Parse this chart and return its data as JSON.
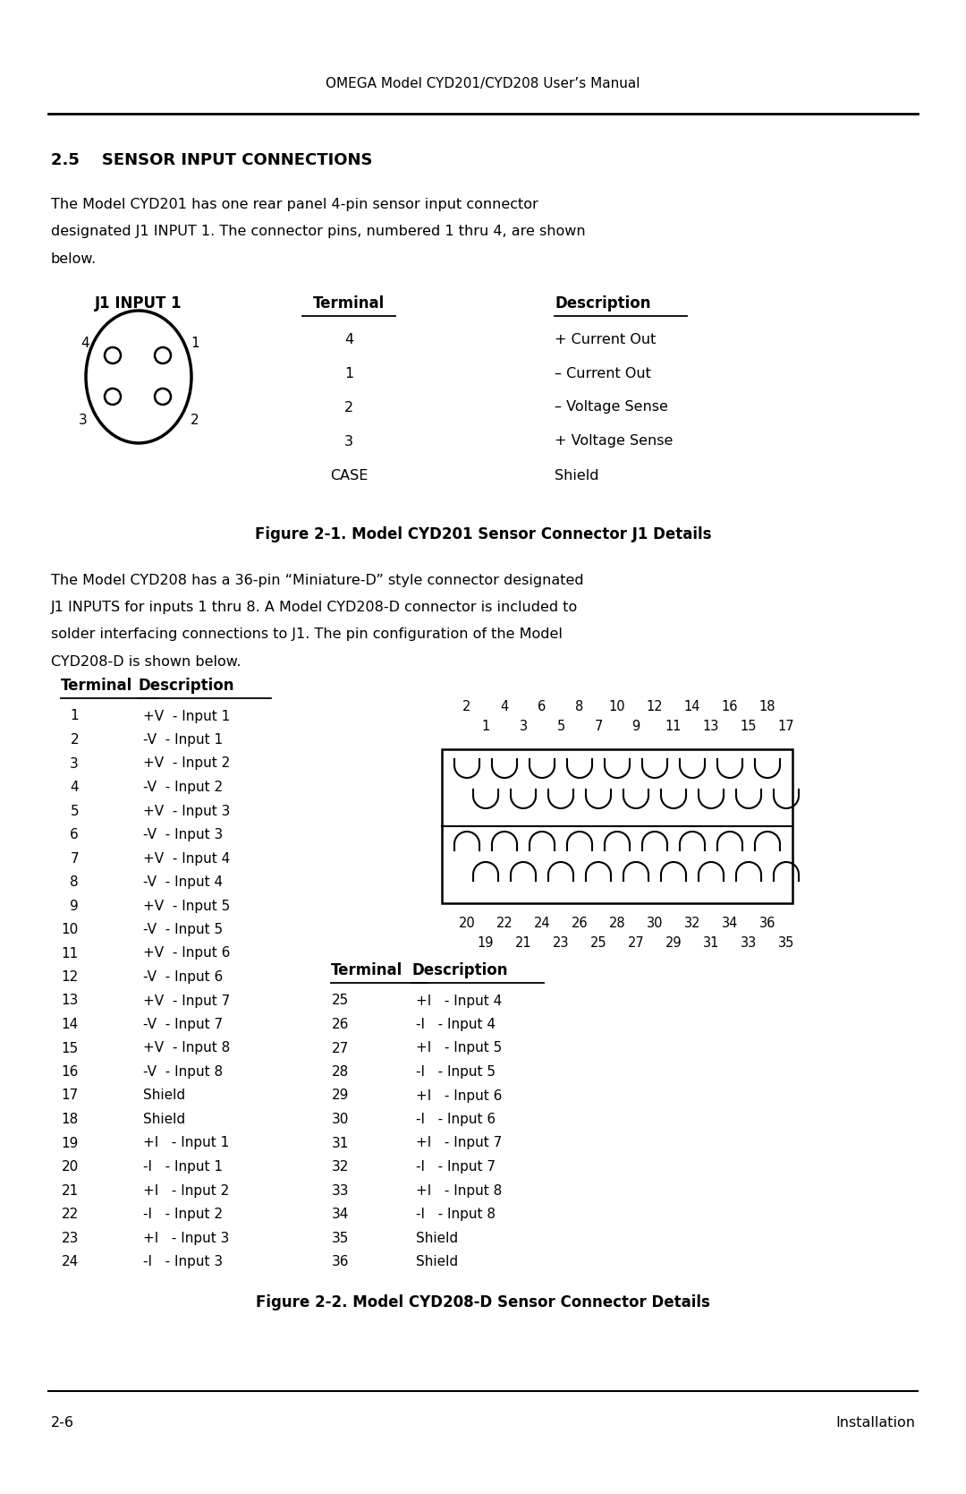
{
  "header_text": "OMEGA Model CYD201/CYD208 User’s Manual",
  "section_heading": "2.5    SENSOR INPUT CONNECTIONS",
  "body_text1_lines": [
    "The Model CYD201 has one rear panel 4-pin sensor input connector",
    "designated J1 INPUT 1. The connector pins, numbered 1 thru 4, are shown",
    "below."
  ],
  "j1_label": "J1 INPUT 1",
  "terminal_header": "Terminal",
  "description_header": "Description",
  "j1_terminals": [
    "4",
    "1",
    "2",
    "3",
    "CASE"
  ],
  "j1_descriptions": [
    "+ Current Out",
    "– Current Out",
    "– Voltage Sense",
    "+ Voltage Sense",
    "Shield"
  ],
  "fig1_caption": "Figure 2-1. Model CYD201 Sensor Connector J1 Details",
  "body_text2_lines": [
    "The Model CYD208 has a 36-pin “Miniature-D” style connector designated",
    "J1 INPUTS for inputs 1 thru 8. A Model CYD208-D connector is included to",
    "solder interfacing connections to J1. The pin configuration of the Model",
    "CYD208-D is shown below."
  ],
  "terminal_header2": "Terminal",
  "description_header2": "Description",
  "left_terminals": [
    [
      "1",
      "+V  - Input 1"
    ],
    [
      "2",
      "-V  - Input 1"
    ],
    [
      "3",
      "+V  - Input 2"
    ],
    [
      "4",
      "-V  - Input 2"
    ],
    [
      "5",
      "+V  - Input 3"
    ],
    [
      "6",
      "-V  - Input 3"
    ],
    [
      "7",
      "+V  - Input 4"
    ],
    [
      "8",
      "-V  - Input 4"
    ],
    [
      "9",
      "+V  - Input 5"
    ],
    [
      "10",
      "-V  - Input 5"
    ],
    [
      "11",
      "+V  - Input 6"
    ],
    [
      "12",
      "-V  - Input 6"
    ],
    [
      "13",
      "+V  - Input 7"
    ],
    [
      "14",
      "-V  - Input 7"
    ],
    [
      "15",
      "+V  - Input 8"
    ],
    [
      "16",
      "-V  - Input 8"
    ],
    [
      "17",
      "Shield"
    ],
    [
      "18",
      "Shield"
    ],
    [
      "19",
      "+I   - Input 1"
    ],
    [
      "20",
      "-I   - Input 1"
    ],
    [
      "21",
      "+I   - Input 2"
    ],
    [
      "22",
      "-I   - Input 2"
    ],
    [
      "23",
      "+I   - Input 3"
    ],
    [
      "24",
      "-I   - Input 3"
    ]
  ],
  "right_terminals": [
    [
      "25",
      "+I   - Input 4"
    ],
    [
      "26",
      "-I   - Input 4"
    ],
    [
      "27",
      "+I   - Input 5"
    ],
    [
      "28",
      "-I   - Input 5"
    ],
    [
      "29",
      "+I   - Input 6"
    ],
    [
      "30",
      "-I   - Input 6"
    ],
    [
      "31",
      "+I   - Input 7"
    ],
    [
      "32",
      "-I   - Input 7"
    ],
    [
      "33",
      "+I   - Input 8"
    ],
    [
      "34",
      "-I   - Input 8"
    ],
    [
      "35",
      "Shield"
    ],
    [
      "36",
      "Shield"
    ]
  ],
  "top_row_numbers": [
    "2",
    "4",
    "6",
    "8",
    "10",
    "12",
    "14",
    "16",
    "18"
  ],
  "top_row_sub": [
    "1",
    "3",
    "5",
    "7",
    "9",
    "11",
    "13",
    "15",
    "17"
  ],
  "bottom_row_numbers": [
    "20",
    "22",
    "24",
    "26",
    "28",
    "30",
    "32",
    "34",
    "36"
  ],
  "bottom_row_sub": [
    "19",
    "21",
    "23",
    "25",
    "27",
    "29",
    "31",
    "33",
    "35"
  ],
  "fig2_caption": "Figure 2-2. Model CYD208-D Sensor Connector Details",
  "footer_left": "2-6",
  "footer_right": "Installation",
  "bg_color": "#ffffff",
  "text_color": "#000000"
}
